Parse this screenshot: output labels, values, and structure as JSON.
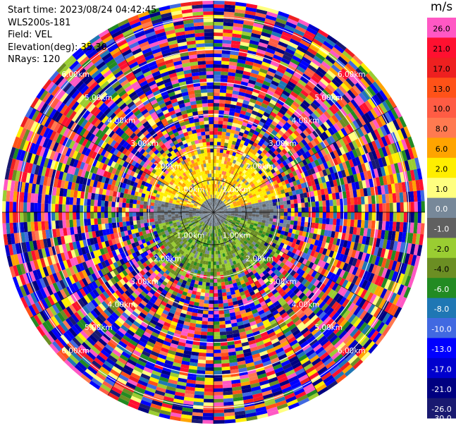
{
  "header": {
    "start_time": "Start time: 2023/08/24 04:42:45",
    "instrument": "WLS200s-181",
    "field": "Field: VEL",
    "elevation": "Elevation(deg): 35.30",
    "nrays": "NRays: 120"
  },
  "chart_data": {
    "type": "heatmap",
    "subtype": "ppi-polar",
    "range_rings_km": [
      1.0,
      2.0,
      3.0,
      4.0,
      5.0,
      6.0
    ],
    "range_ring_labels": [
      "1.00km",
      "2.00km",
      "3.00km",
      "4.00km",
      "5.00km",
      "6.00km"
    ],
    "max_range_km": 6.5,
    "n_rays": 120,
    "colorbar": {
      "unit": "m/s",
      "ticks": [
        "26.0",
        "21.0",
        "17.0",
        "13.0",
        "10.0",
        "8.0",
        "6.0",
        "2.0",
        "1.0",
        "0.0",
        "-1.0",
        "-2.0",
        "-4.0",
        "-6.0",
        "-8.0",
        "-10.0",
        "-13.0",
        "-17.0",
        "-21.0",
        "-26.0",
        "-30.0"
      ],
      "colors": [
        "#ff58c4",
        "#ff1030",
        "#ee2020",
        "#ff5218",
        "#ff5c44",
        "#ff7a50",
        "#ffa400",
        "#ffee00",
        "#ffff80",
        "#778899",
        "#606060",
        "#9acd32",
        "#6b8e23",
        "#228b22",
        "#1f77b4",
        "#4169e1",
        "#0000ff",
        "#0000cd",
        "#000080",
        "#191970"
      ]
    },
    "grid": true,
    "sectors": {
      "north_inner": "positive (yellow/orange, ~1–8 m/s)",
      "south_inner": "negative (green, ~-2 to -6 m/s)",
      "east_west_inner": "near zero (gray)",
      "outer": "noise (mixed colors)"
    }
  }
}
